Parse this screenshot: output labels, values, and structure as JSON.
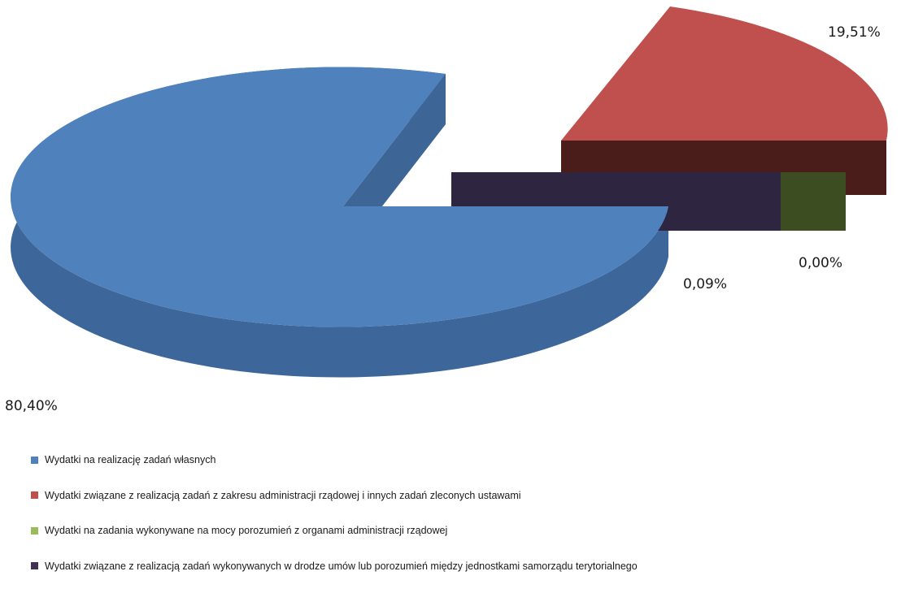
{
  "chart_data": {
    "type": "pie",
    "series": [
      {
        "name": "Wydatki na realizację zadań własnych",
        "value": 80.4,
        "label": "80,40%",
        "color": "#4f81bd"
      },
      {
        "name": "Wydatki związane z realizacją zadań z zakresu administracji rządowej i innych zadań zleconych ustawami",
        "value": 19.51,
        "label": "19,51%",
        "color": "#c0504d"
      },
      {
        "name": "Wydatki na zadania wykonywane na mocy porozumień z organami administracji rządowej",
        "value": 0.0,
        "label": "0,00%",
        "color": "#9bbb59"
      },
      {
        "name": "Wydatki związane z realizacją zadań wykonywanych w drodze umów lub porozumień między jednostkami samorządu terytorialnego",
        "value": 0.09,
        "label": "0,09%",
        "color": "#403151"
      }
    ],
    "legend_position": "bottom",
    "style": "3d-exploded"
  }
}
